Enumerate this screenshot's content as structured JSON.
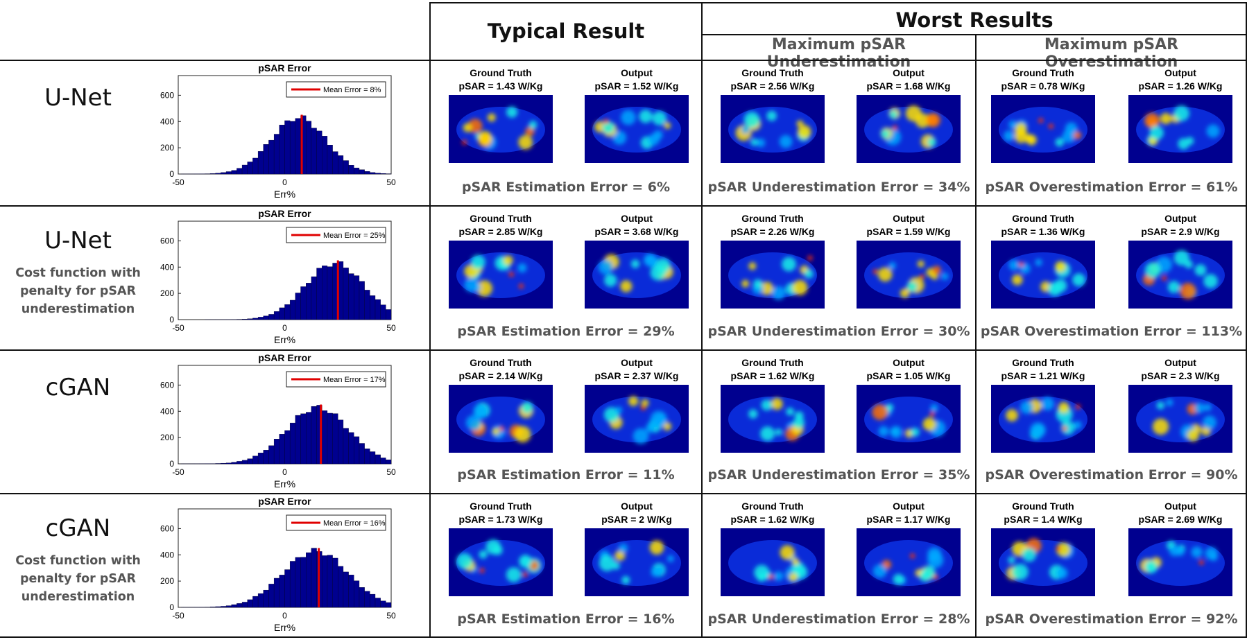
{
  "headers": {
    "typical": "Typical Result",
    "worst": "Worst Results",
    "under": "Maximum pSAR Underestimation",
    "over": "Maximum pSAR Overestimation"
  },
  "panel_labels": {
    "gt": "Ground Truth",
    "out": "Output"
  },
  "colors": {
    "bar": "#00008f",
    "mean_line": "#e00000",
    "map_background": "#00008f"
  },
  "rows": [
    {
      "model": "U-Net",
      "subtitle": [],
      "histogram": {
        "title": "pSAR Error",
        "xlabel": "Err%",
        "xticks": [
          "-50",
          "0",
          "50"
        ],
        "yticks": [
          "0",
          "200",
          "400",
          "600"
        ],
        "legend": "Mean Error = 8%",
        "mean": 8
      },
      "typical": {
        "gt": "pSAR = 1.43 W/Kg",
        "out": "pSAR = 1.52 W/Kg",
        "error": "pSAR Estimation Error = 6%"
      },
      "under": {
        "gt": "pSAR = 2.56 W/Kg",
        "out": "pSAR = 1.68 W/Kg",
        "error": "pSAR Underestimation Error = 34%"
      },
      "over": {
        "gt": "pSAR = 0.78 W/Kg",
        "out": "pSAR = 1.26 W/Kg",
        "error": "pSAR Overestimation Error = 61%"
      }
    },
    {
      "model": "U-Net",
      "subtitle": [
        "Cost function with",
        "penalty for pSAR",
        "underestimation"
      ],
      "histogram": {
        "title": "pSAR Error",
        "xlabel": "Err%",
        "xticks": [
          "-50",
          "0",
          "50"
        ],
        "yticks": [
          "0",
          "200",
          "400",
          "600"
        ],
        "legend": "Mean Error = 25%",
        "mean": 25
      },
      "typical": {
        "gt": "pSAR = 2.85 W/Kg",
        "out": "pSAR = 3.68 W/Kg",
        "error": "pSAR Estimation Error = 29%"
      },
      "under": {
        "gt": "pSAR = 2.26 W/Kg",
        "out": "pSAR = 1.59 W/Kg",
        "error": "pSAR Underestimation Error = 30%"
      },
      "over": {
        "gt": "pSAR = 1.36 W/Kg",
        "out": "pSAR = 2.9 W/Kg",
        "error": "pSAR Overestimation Error = 113%"
      }
    },
    {
      "model": "cGAN",
      "subtitle": [],
      "histogram": {
        "title": "pSAR Error",
        "xlabel": "Err%",
        "xticks": [
          "-50",
          "0",
          "50"
        ],
        "yticks": [
          "0",
          "200",
          "400",
          "600"
        ],
        "legend": "Mean Error = 17%",
        "mean": 17
      },
      "typical": {
        "gt": "pSAR = 2.14 W/Kg",
        "out": "pSAR = 2.37 W/Kg",
        "error": "pSAR Estimation Error = 11%"
      },
      "under": {
        "gt": "pSAR = 1.62 W/Kg",
        "out": "pSAR = 1.05 W/Kg",
        "error": "pSAR Underestimation Error = 35%"
      },
      "over": {
        "gt": "pSAR = 1.21 W/Kg",
        "out": "pSAR = 2.3 W/Kg",
        "error": "pSAR Overestimation Error = 90%"
      }
    },
    {
      "model": "cGAN",
      "subtitle": [
        "Cost function with",
        "penalty for pSAR",
        "underestimation"
      ],
      "histogram": {
        "title": "pSAR Error",
        "xlabel": "Err%",
        "xticks": [
          "-50",
          "0",
          "50"
        ],
        "yticks": [
          "0",
          "200",
          "400",
          "600"
        ],
        "legend": "Mean Error = 16%",
        "mean": 16
      },
      "typical": {
        "gt": "pSAR = 1.73 W/Kg",
        "out": "pSAR = 2 W/Kg",
        "error": "pSAR Estimation Error = 16%"
      },
      "under": {
        "gt": "pSAR = 1.62 W/Kg",
        "out": "pSAR = 1.17 W/Kg",
        "error": "pSAR Underestimation Error = 28%"
      },
      "over": {
        "gt": "pSAR = 1.4 W/Kg",
        "out": "pSAR = 2.69 W/Kg",
        "error": "pSAR Overestimation Error = 92%"
      }
    }
  ]
}
